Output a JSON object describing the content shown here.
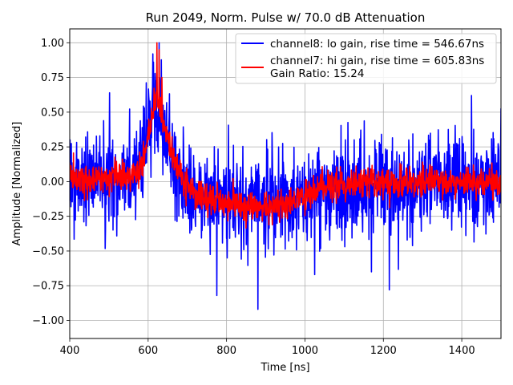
{
  "chart_data": {
    "type": "line",
    "title": "Run 2049, Norm. Pulse w/ 70.0 dB Attenuation",
    "xlabel": "Time [ns]",
    "ylabel": "Amplitude [Normalized]",
    "xlim": [
      400,
      1500
    ],
    "ylim": [
      -1.13,
      1.1
    ],
    "xticks": [
      400,
      600,
      800,
      1000,
      1200,
      1400
    ],
    "xtick_labels": [
      "400",
      "600",
      "800",
      "1000",
      "1200",
      "1400"
    ],
    "yticks": [
      1.0,
      0.75,
      0.5,
      0.25,
      0.0,
      -0.25,
      -0.5,
      -0.75,
      -1.0
    ],
    "ytick_labels": [
      "1.00",
      "0.75",
      "0.50",
      "0.25",
      "0.00",
      "−0.25",
      "−0.50",
      "−0.75",
      "−1.00"
    ],
    "grid": true,
    "legend_position": "top-right",
    "series": [
      {
        "name": "channel8: lo gain, rise time = 546.67ns",
        "color": "#0000ff",
        "description": "noisy normalized pulse, baseline ~0, noise amplitude ~0.3, peak near 620 ns",
        "envelope": {
          "x": [
            400,
            560,
            585,
            600,
            615,
            630,
            650,
            680,
            720,
            800,
            900,
            1000,
            1100,
            1200,
            1300,
            1500
          ],
          "mean": [
            0.0,
            0.02,
            0.15,
            0.35,
            0.45,
            0.38,
            0.25,
            0.05,
            -0.1,
            -0.12,
            -0.15,
            -0.12,
            -0.08,
            -0.02,
            0.0,
            0.0
          ],
          "noise": 0.17
        },
        "notable_points": [
          {
            "x": 502,
            "y": 0.64
          },
          {
            "x": 612,
            "y": 0.92
          },
          {
            "x": 628,
            "y": 1.0
          },
          {
            "x": 880,
            "y": -0.92
          },
          {
            "x": 1215,
            "y": -0.78
          },
          {
            "x": 775,
            "y": -0.82
          },
          {
            "x": 1425,
            "y": 0.62
          },
          {
            "x": 1025,
            "y": -0.67
          }
        ]
      },
      {
        "name": "channel7: hi gain, rise time = 605.83ns",
        "color": "#ff0000",
        "description": "smoother normalized pulse, peak 1.0 near 622 ns, undershoot to ~-0.2 around 800-1000 ns",
        "envelope": {
          "x": [
            400,
            560,
            580,
            600,
            615,
            625,
            640,
            660,
            690,
            720,
            800,
            880,
            950,
            1050,
            1150,
            1300,
            1500
          ],
          "mean": [
            0.02,
            0.03,
            0.1,
            0.3,
            0.55,
            0.6,
            0.42,
            0.2,
            0.02,
            -0.1,
            -0.15,
            -0.2,
            -0.15,
            -0.05,
            0.0,
            0.0,
            0.0
          ],
          "noise": 0.055
        },
        "notable_points": [
          {
            "x": 622,
            "y": 1.0
          },
          {
            "x": 628,
            "y": 0.95
          },
          {
            "x": 635,
            "y": 0.75
          }
        ]
      }
    ],
    "legend_extra": "Gain Ratio: 15.24"
  }
}
